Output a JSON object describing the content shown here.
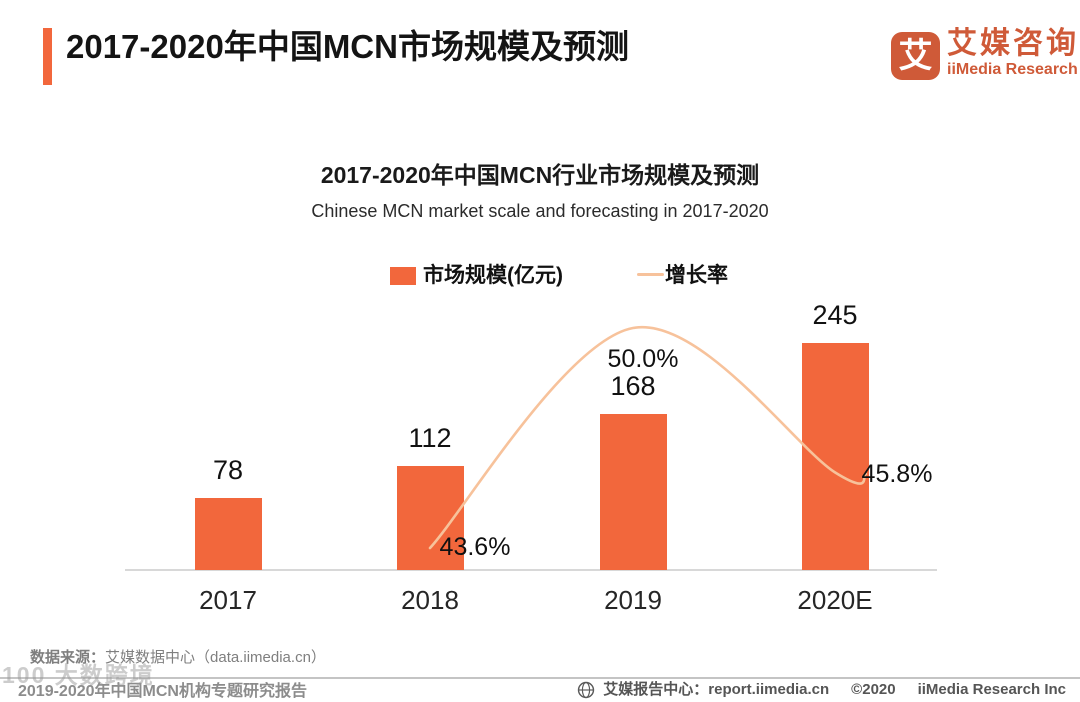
{
  "header": {
    "title": "2017-2020年中国MCN市场规模及预测"
  },
  "logo": {
    "icon_char": "艾",
    "name_cn": "艾媒咨询",
    "name_en": "iiMedia Research"
  },
  "chart": {
    "title": "2017-2020年中国MCN行业市场规模及预测",
    "subtitle": "Chinese MCN market scale and forecasting in 2017-2020"
  },
  "chart_data": {
    "type": "bar",
    "categories": [
      "2017",
      "2018",
      "2019",
      "2020E"
    ],
    "series": [
      {
        "name": "市场规模(亿元)",
        "type": "bar",
        "values": [
          78,
          112,
          168,
          245
        ],
        "color": "#f2673c"
      },
      {
        "name": "增长率",
        "type": "line",
        "values": [
          null,
          43.6,
          50.0,
          45.8
        ],
        "point_labels": [
          "",
          "43.6%",
          "50.0%",
          "45.8%"
        ],
        "color": "#f7c29b"
      }
    ],
    "title": "2017-2020年中国MCN行业市场规模及预测",
    "subtitle": "Chinese MCN market scale and forecasting in 2017-2020",
    "xlabel": "",
    "ylabel": "",
    "grid": false,
    "legend_position": "top",
    "value_labels_shown": true
  },
  "source": {
    "label": "数据来源：",
    "text": "艾媒数据中心（data.iimedia.cn）"
  },
  "watermark": {
    "text": "100 大数跨境"
  },
  "footer": {
    "left": "2019-2020年中国MCN机构专题研究报告",
    "report_center": "艾媒报告中心：report.iimedia.cn",
    "copyright": "©2020",
    "company": "iiMedia Research  Inc"
  }
}
